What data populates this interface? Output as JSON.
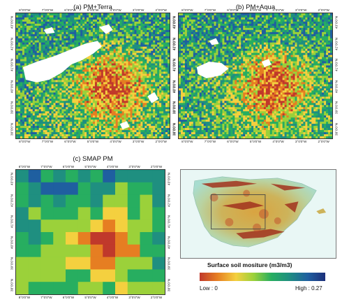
{
  "panels": {
    "a": {
      "title": "(a) PM+Terra",
      "x_ticks": [
        "8°0'0\"W",
        "7°0'0\"W",
        "6°0'0\"W",
        "5°0'0\"W",
        "4°0'0\"W",
        "3°0'0\"W",
        "2°0'0\"W"
      ],
      "y_ticks": [
        "43°0'0\"N",
        "42°0'0\"N",
        "41°0'0\"N",
        "40°0'0\"N",
        "39°0'0\"N",
        "38°0'0\"N"
      ]
    },
    "b": {
      "title": "(b) PM+Aqua",
      "x_ticks": [
        "8°0'0\"W",
        "7°0'0\"W",
        "6°0'0\"W",
        "5°0'0\"W",
        "4°0'0\"W",
        "3°0'0\"W",
        "2°0'0\"W"
      ],
      "y_ticks": [
        "43°0'0\"N",
        "42°0'0\"N",
        "41°0'0\"N",
        "40°0'0\"N",
        "39°0'0\"N",
        "38°0'0\"N"
      ]
    },
    "c": {
      "title": "(c) SMAP PM",
      "x_ticks": [
        "8°0'0\"W",
        "7°0'0\"W",
        "6°0'0\"W",
        "5°0'0\"W",
        "4°0'0\"W",
        "3°0'0\"W",
        "2°0'0\"W"
      ],
      "y_ticks": [
        "43°0'0\"N",
        "42°0'0\"N",
        "41°0'0\"N",
        "40°0'0\"N",
        "39°0'0\"N",
        "38°0'0\"N"
      ]
    }
  },
  "legend": {
    "title": "Surface soil mositure (m3/m3)",
    "low_label": "Low : 0",
    "high_label": "High : 0.27",
    "colors": [
      "#c0392b",
      "#e67e22",
      "#f4d03f",
      "#9bd13a",
      "#27ae60",
      "#1f8f80",
      "#1f5fa0",
      "#1c2f7a"
    ]
  },
  "colors": {
    "frame": "#333333",
    "missing": "#ffffff"
  }
}
